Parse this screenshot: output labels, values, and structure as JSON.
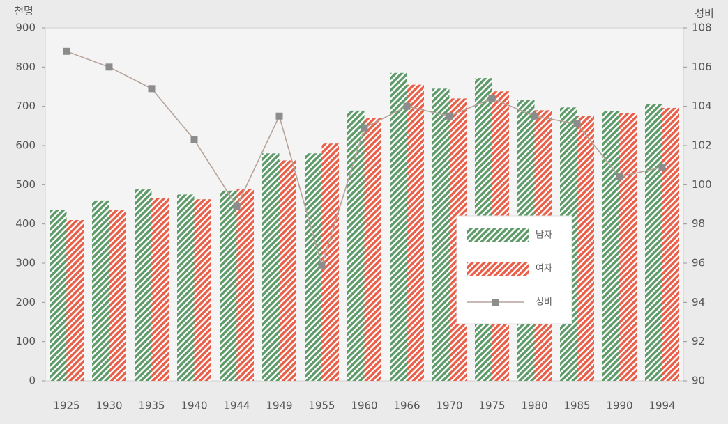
{
  "chart_data": {
    "type": "bar_line",
    "ylabel": "천명",
    "y2label": "성비",
    "categories": [
      "1925",
      "1930",
      "1935",
      "1940",
      "1944",
      "1949",
      "1955",
      "1960",
      "1966",
      "1970",
      "1975",
      "1980",
      "1985",
      "1990",
      "1994"
    ],
    "series": [
      {
        "name": "남자",
        "color": "#5f9a6a",
        "values": [
          435,
          460,
          488,
          475,
          485,
          580,
          580,
          689,
          785,
          745,
          772,
          716,
          697,
          688,
          706
        ]
      },
      {
        "name": "여자",
        "color": "#e8604a",
        "values": [
          410,
          435,
          466,
          463,
          490,
          562,
          605,
          670,
          755,
          720,
          738,
          690,
          676,
          682,
          696
        ]
      },
      {
        "name": "성비",
        "color": "#b5a39a",
        "marker_color": "#8c8c8c",
        "axis": "y2",
        "values": [
          106.8,
          106.0,
          104.9,
          102.3,
          98.9,
          103.5,
          95.9,
          102.9,
          104.0,
          103.5,
          104.4,
          103.5,
          103.1,
          100.4,
          100.9
        ]
      }
    ],
    "ylim": [
      0,
      900
    ],
    "yticks": [
      0,
      100,
      200,
      300,
      400,
      500,
      600,
      700,
      800,
      900
    ],
    "y2lim": [
      90,
      108
    ],
    "y2ticks": [
      90,
      92,
      94,
      96,
      98,
      100,
      102,
      104,
      106,
      108
    ]
  }
}
